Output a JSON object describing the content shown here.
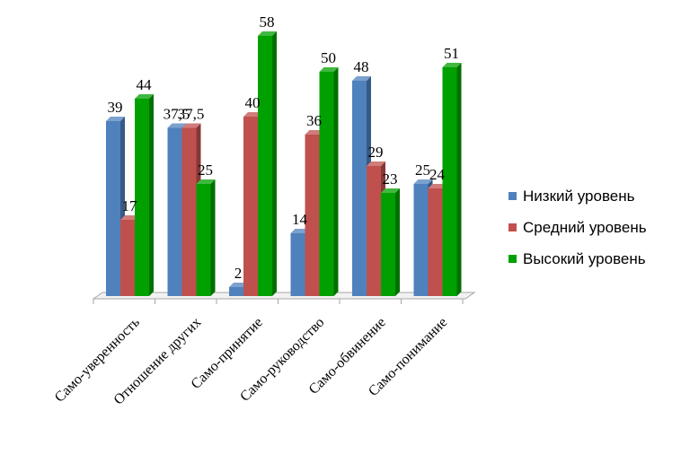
{
  "chart_data": {
    "type": "bar",
    "categories": [
      "Само-уверенность",
      "Отношение других",
      "Само-принятие",
      "Само-руководство",
      "Само-обвинение",
      "Само-понимание"
    ],
    "series": [
      {
        "name": "Низкий уровень",
        "values": [
          39,
          37.5,
          2,
          14,
          48,
          25
        ],
        "labels": [
          "39",
          "37,5",
          "2",
          "14",
          "48",
          "25"
        ],
        "color": "#4f81bd"
      },
      {
        "name": "Средний уровень",
        "values": [
          17,
          37.5,
          40,
          36,
          29,
          24
        ],
        "labels": [
          "17",
          "37,5",
          "40",
          "36",
          "29",
          "24"
        ],
        "color": "#c0504d"
      },
      {
        "name": "Высокий уровень",
        "values": [
          44,
          25,
          58,
          50,
          23,
          51
        ],
        "labels": [
          "44",
          "25",
          "58",
          "50",
          "23",
          "51"
        ],
        "color": "#00a000"
      }
    ],
    "ylim": [
      0,
      60
    ],
    "grid": false,
    "legend_position": "right",
    "style": "3d-clustered-column",
    "title": "",
    "xlabel": "",
    "ylabel": ""
  }
}
